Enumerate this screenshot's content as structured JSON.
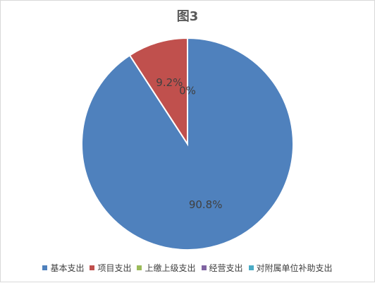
{
  "chart_data": {
    "type": "pie",
    "title": "图3",
    "categories": [
      "基本支出",
      "项目支出",
      "上缴上级支出",
      "经营支出",
      "对附属单位补助支出"
    ],
    "values": [
      90.8,
      9.2,
      0,
      0,
      0
    ],
    "data_labels": [
      "90.8%",
      "9.2%",
      "0%",
      "",
      ""
    ],
    "colors": [
      "#4F81BD",
      "#C0504D",
      "#9BBB59",
      "#8064A2",
      "#4BACC6"
    ],
    "legend_position": "bottom",
    "start_angle_deg": 0,
    "direction": "clockwise"
  }
}
